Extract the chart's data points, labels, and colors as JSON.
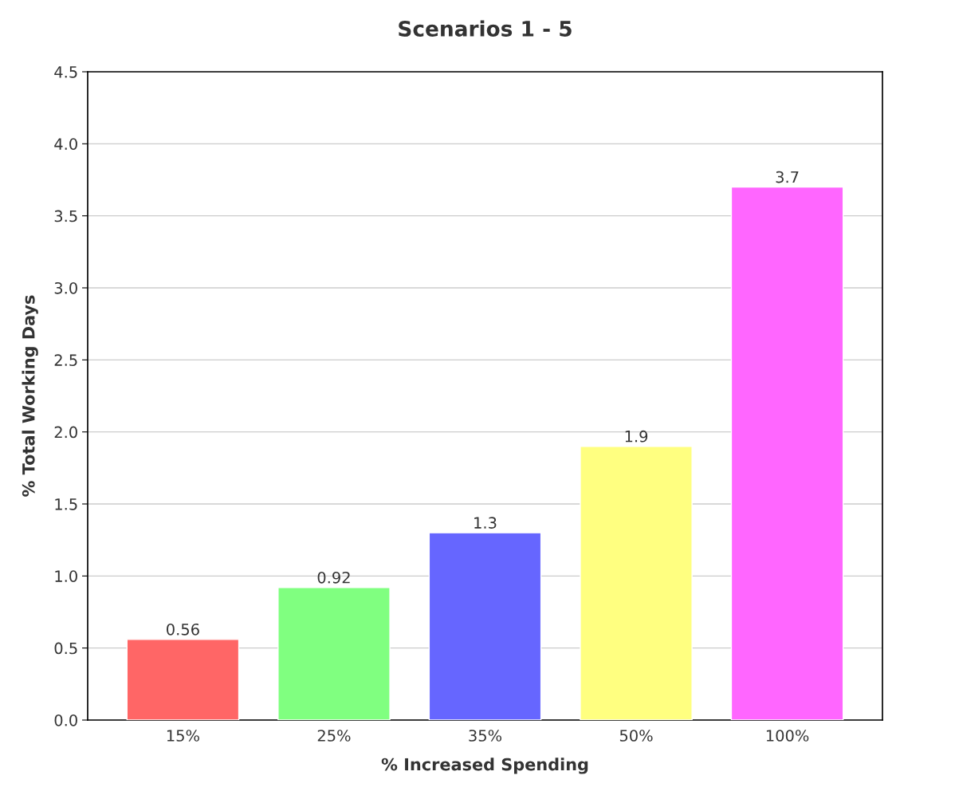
{
  "chart_data": {
    "type": "bar",
    "title": "Scenarios 1 - 5",
    "xlabel": "% Increased Spending",
    "ylabel": "% Total Working Days",
    "categories": [
      "15%",
      "25%",
      "35%",
      "50%",
      "100%"
    ],
    "values": [
      0.56,
      0.92,
      1.3,
      1.9,
      3.7
    ],
    "colors": [
      "#ff6666",
      "#80ff80",
      "#6666ff",
      "#ffff80",
      "#ff66ff"
    ],
    "ylim": [
      0,
      4.5
    ],
    "yticks": [
      {
        "value": 0,
        "label": "0.0"
      },
      {
        "value": 0.5,
        "label": "0.5"
      },
      {
        "value": 1,
        "label": "1.0"
      },
      {
        "value": 1.5,
        "label": "1.5"
      },
      {
        "value": 2,
        "label": "2.0"
      },
      {
        "value": 2.5,
        "label": "2.5"
      },
      {
        "value": 3,
        "label": "3.0"
      },
      {
        "value": 3.5,
        "label": "3.5"
      },
      {
        "value": 4,
        "label": "4.0"
      },
      {
        "value": 4.5,
        "label": "4.5"
      }
    ],
    "grid": "y",
    "data_labels": true,
    "legend": false
  }
}
